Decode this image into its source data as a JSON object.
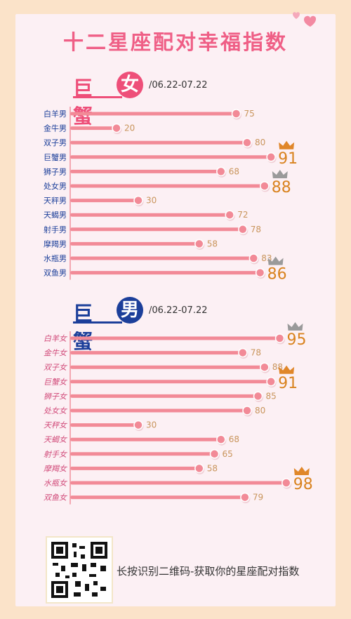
{
  "title": "十二星座配对幸福指数",
  "sections": [
    {
      "word": "巨蟹",
      "gender": "女",
      "date": "/06.22-07.22",
      "color": "#ee4f79"
    },
    {
      "word": "巨蟹",
      "gender": "男",
      "date": "/06.22-07.22",
      "color": "#1c3f9a"
    }
  ],
  "chart_data": [
    {
      "type": "bar",
      "categories": [
        "白羊男",
        "金牛男",
        "双子男",
        "巨蟹男",
        "狮子男",
        "处女男",
        "天秤男",
        "天蝎男",
        "射手男",
        "摩羯男",
        "水瓶男",
        "双鱼男"
      ],
      "values": [
        75,
        20,
        80,
        91,
        68,
        88,
        30,
        72,
        78,
        58,
        83,
        86
      ],
      "highlight": [
        "巨蟹男",
        "处女男",
        "双鱼男"
      ]
    },
    {
      "type": "bar",
      "categories": [
        "白羊女",
        "金牛女",
        "双子女",
        "巨蟹女",
        "狮子女",
        "处女女",
        "天秤女",
        "天蝎女",
        "射手女",
        "摩羯女",
        "水瓶女",
        "双鱼女"
      ],
      "values": [
        95,
        78,
        88,
        91,
        85,
        80,
        30,
        68,
        65,
        58,
        98,
        79
      ],
      "highlight": [
        "白羊女",
        "巨蟹女",
        "水瓶女"
      ]
    }
  ],
  "colors": {
    "bar": "#f28a97",
    "label_blue": "#1c3f9a",
    "label_red": "#d14b7a",
    "value": "#c9955c",
    "highlight": "#d9831f",
    "crown_gold": "#e0872a",
    "crown_gray": "#9a9a9a"
  },
  "footer": {
    "text": "长按识别二维码-获取你的星座配对指数",
    "qr_icon": "qr-code-icon"
  }
}
